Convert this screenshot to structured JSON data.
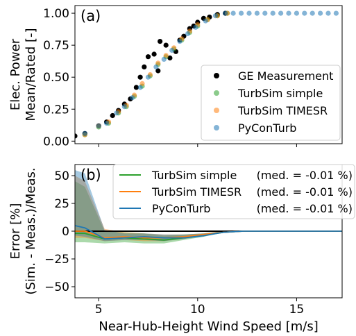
{
  "chart_data": [
    {
      "type": "scatter",
      "panel_label": "(a)",
      "ylabel_lines": [
        "Elec. Power",
        "Mean/Rated [-]"
      ],
      "xlabel": "",
      "xlim": [
        3.8,
        17.3
      ],
      "ylim": [
        -0.02,
        1.06
      ],
      "xticks": [
        5,
        10,
        15
      ],
      "yticks": [
        0.0,
        0.25,
        0.5,
        0.75,
        1.0
      ],
      "ytick_labels": [
        "0.00",
        "0.25",
        "0.50",
        "0.75",
        "1.00"
      ],
      "show_xtick_labels": false,
      "legend_position": "lower-right",
      "series": [
        {
          "name": "GE Measurement",
          "color": "#000000",
          "points": [
            [
              3.8,
              0.04
            ],
            [
              4.3,
              0.06
            ],
            [
              5.0,
              0.12
            ],
            [
              5.4,
              0.15
            ],
            [
              5.7,
              0.2
            ],
            [
              6.0,
              0.24
            ],
            [
              6.3,
              0.29
            ],
            [
              6.6,
              0.33
            ],
            [
              6.9,
              0.42
            ],
            [
              7.1,
              0.5
            ],
            [
              7.3,
              0.58
            ],
            [
              7.5,
              0.66
            ],
            [
              7.8,
              0.68
            ],
            [
              8.0,
              0.55
            ],
            [
              8.1,
              0.78
            ],
            [
              8.4,
              0.75
            ],
            [
              8.6,
              0.65
            ],
            [
              8.9,
              0.7
            ],
            [
              9.1,
              0.79
            ],
            [
              9.3,
              0.82
            ],
            [
              9.6,
              0.88
            ],
            [
              9.8,
              0.9
            ],
            [
              10.0,
              0.93
            ],
            [
              10.3,
              0.96
            ],
            [
              10.6,
              0.97
            ],
            [
              11.0,
              0.99
            ],
            [
              11.4,
              1.0
            ]
          ]
        },
        {
          "name": "TurbSim simple",
          "color": "#2ca02c",
          "points": [
            [
              4.3,
              0.05
            ],
            [
              5.0,
              0.11
            ],
            [
              5.5,
              0.14
            ],
            [
              6.0,
              0.22
            ],
            [
              6.4,
              0.27
            ],
            [
              6.8,
              0.35
            ],
            [
              7.2,
              0.43
            ],
            [
              7.6,
              0.51
            ],
            [
              8.0,
              0.6
            ],
            [
              8.4,
              0.66
            ],
            [
              8.8,
              0.72
            ],
            [
              9.2,
              0.79
            ],
            [
              9.6,
              0.85
            ],
            [
              10.0,
              0.9
            ],
            [
              10.5,
              0.95
            ],
            [
              11.0,
              0.98
            ],
            [
              11.5,
              1.0
            ]
          ]
        },
        {
          "name": "TurbSim TIMESR",
          "color": "#ff7f0e",
          "points": [
            [
              4.3,
              0.05
            ],
            [
              5.0,
              0.12
            ],
            [
              5.5,
              0.15
            ],
            [
              6.0,
              0.23
            ],
            [
              6.4,
              0.28
            ],
            [
              6.8,
              0.36
            ],
            [
              7.2,
              0.45
            ],
            [
              7.6,
              0.52
            ],
            [
              8.0,
              0.61
            ],
            [
              8.4,
              0.67
            ],
            [
              8.8,
              0.73
            ],
            [
              9.2,
              0.8
            ],
            [
              9.6,
              0.86
            ],
            [
              10.0,
              0.91
            ],
            [
              10.5,
              0.95
            ],
            [
              11.0,
              0.98
            ],
            [
              11.5,
              1.0
            ]
          ]
        },
        {
          "name": "PyConTurb",
          "color": "#1f77b4",
          "points": [
            [
              4.3,
              0.06
            ],
            [
              5.0,
              0.12
            ],
            [
              5.4,
              0.14
            ],
            [
              5.9,
              0.22
            ],
            [
              6.3,
              0.27
            ],
            [
              6.7,
              0.34
            ],
            [
              7.1,
              0.42
            ],
            [
              7.5,
              0.5
            ],
            [
              7.9,
              0.58
            ],
            [
              8.3,
              0.64
            ],
            [
              8.7,
              0.71
            ],
            [
              9.1,
              0.78
            ],
            [
              9.5,
              0.84
            ],
            [
              9.9,
              0.89
            ],
            [
              10.4,
              0.94
            ],
            [
              10.9,
              0.98
            ],
            [
              11.4,
              1.0
            ],
            [
              11.8,
              1.0
            ],
            [
              12.2,
              1.0
            ],
            [
              12.6,
              1.0
            ],
            [
              13.0,
              1.0
            ],
            [
              13.4,
              1.0
            ],
            [
              13.8,
              1.0
            ],
            [
              14.2,
              1.0
            ],
            [
              14.6,
              1.0
            ],
            [
              15.0,
              1.0
            ],
            [
              15.4,
              1.0
            ],
            [
              15.8,
              1.0
            ],
            [
              16.2,
              1.0
            ],
            [
              16.6,
              1.0
            ],
            [
              17.0,
              1.0
            ]
          ]
        }
      ]
    },
    {
      "type": "line",
      "panel_label": "(b)",
      "ylabel_lines": [
        "Error [%]",
        "(Sim. - Meas.)/Meas."
      ],
      "xlabel": "Near-Hub-Height Wind Speed [m/s]",
      "xlim": [
        3.8,
        17.3
      ],
      "ylim": [
        -60,
        60
      ],
      "xticks": [
        5,
        10,
        15
      ],
      "yticks": [
        -50,
        -25,
        0,
        25,
        50
      ],
      "ytick_labels": [
        "−50",
        "−25",
        "0",
        "25",
        "50"
      ],
      "zero_line": true,
      "legend_position": "top-right",
      "x": [
        3.8,
        4.3,
        5.3,
        6.3,
        7.3,
        8.3,
        9.3,
        10.3,
        11.3,
        12.3,
        13.3,
        17.3
      ],
      "series": [
        {
          "name": "TurbSim simple",
          "legend_label": "TurbSim simple",
          "legend_median": "(med. = -0.01 %)",
          "color": "#2ca02c",
          "median": [
            -2,
            -2,
            -7,
            -6,
            -7,
            -8,
            -6,
            -4,
            -1,
            0,
            0,
            0
          ],
          "lower": [
            -10,
            -10,
            -11,
            -10,
            -11,
            -11,
            -8,
            -5,
            -1,
            0,
            0,
            0
          ],
          "upper": [
            45,
            40,
            0,
            -1,
            -2,
            -4,
            -3,
            -2,
            0,
            0,
            0,
            0
          ]
        },
        {
          "name": "TurbSim TIMESR",
          "legend_label": "TurbSim TIMESR",
          "legend_median": "(med. = -0.01 %)",
          "color": "#ff7f0e",
          "median": [
            0,
            0,
            -6,
            -5,
            -6,
            -6,
            -5,
            -3,
            -1,
            0,
            0,
            0
          ],
          "lower": [
            -6,
            -6,
            -9,
            -8,
            -9,
            -9,
            -7,
            -4,
            -1,
            0,
            0,
            0
          ],
          "upper": [
            50,
            45,
            2,
            -1,
            -2,
            -3,
            -3,
            -2,
            0,
            0,
            0,
            0
          ]
        },
        {
          "name": "PyConTurb",
          "legend_label": "PyConTurb",
          "legend_median": "(med. = -0.01 %)",
          "color": "#1f77b4",
          "median": [
            5,
            3,
            -7,
            -6,
            -5,
            -6,
            -6,
            -4,
            -1,
            0,
            0,
            0
          ],
          "lower": [
            -4,
            -5,
            -9,
            -8,
            -8,
            -9,
            -7,
            -5,
            -1,
            0,
            0,
            0
          ],
          "upper": [
            55,
            52,
            1,
            -2,
            -2,
            -3,
            -3,
            -2,
            0,
            0,
            0,
            0
          ]
        }
      ]
    }
  ]
}
